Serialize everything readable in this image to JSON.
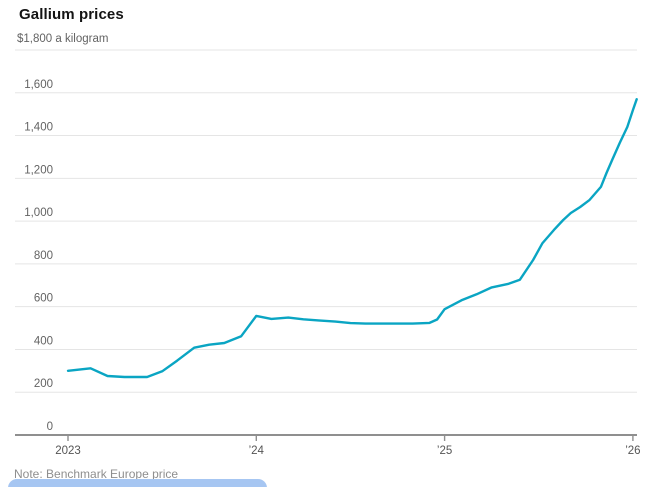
{
  "title": "Gallium prices",
  "unit_label": "$1,800 a kilogram",
  "note": "Note: Benchmark Europe price",
  "colors": {
    "line": "#0aa5c3",
    "grid": "#e5e5e5",
    "axis": "#8f8f8f",
    "y_label": "#636363",
    "x_label": "#555555",
    "title": "#141414",
    "note": "#8e8e8e",
    "bottom_bar": "#a6c6f2"
  },
  "chart_data": {
    "type": "line",
    "title": "Gallium prices",
    "ylabel": "$ a kilogram",
    "y_top_label": "$1,800 a kilogram",
    "ylim": [
      0,
      1800
    ],
    "y_tick_step": 200,
    "y_labeled_ticks": [
      0,
      200,
      400,
      600,
      800,
      1000,
      1200,
      1400,
      1600
    ],
    "xlim": [
      2023,
      2026.03
    ],
    "x_ticks": [
      {
        "t": 2023,
        "label": "2023"
      },
      {
        "t": 2024,
        "label": "’24"
      },
      {
        "t": 2025,
        "label": "’25"
      },
      {
        "t": 2026,
        "label": "’26"
      }
    ],
    "grid": true,
    "legend_position": "none",
    "series": [
      {
        "name": "Benchmark Europe price",
        "points": [
          [
            2023.0,
            300
          ],
          [
            2023.12,
            312
          ],
          [
            2023.21,
            276
          ],
          [
            2023.3,
            271
          ],
          [
            2023.42,
            271
          ],
          [
            2023.5,
            298
          ],
          [
            2023.58,
            348
          ],
          [
            2023.67,
            408
          ],
          [
            2023.75,
            422
          ],
          [
            2023.83,
            430
          ],
          [
            2023.92,
            462
          ],
          [
            2024.0,
            557
          ],
          [
            2024.08,
            543
          ],
          [
            2024.17,
            549
          ],
          [
            2024.25,
            541
          ],
          [
            2024.33,
            536
          ],
          [
            2024.42,
            530
          ],
          [
            2024.5,
            523
          ],
          [
            2024.58,
            521
          ],
          [
            2024.67,
            521
          ],
          [
            2024.75,
            521
          ],
          [
            2024.83,
            521
          ],
          [
            2024.92,
            524
          ],
          [
            2024.96,
            540
          ],
          [
            2025.0,
            588
          ],
          [
            2025.09,
            630
          ],
          [
            2025.17,
            658
          ],
          [
            2025.25,
            690
          ],
          [
            2025.34,
            707
          ],
          [
            2025.4,
            726
          ],
          [
            2025.47,
            818
          ],
          [
            2025.52,
            897
          ],
          [
            2025.58,
            958
          ],
          [
            2025.63,
            1005
          ],
          [
            2025.67,
            1038
          ],
          [
            2025.72,
            1066
          ],
          [
            2025.77,
            1099
          ],
          [
            2025.83,
            1160
          ],
          [
            2025.86,
            1225
          ],
          [
            2025.89,
            1286
          ],
          [
            2025.93,
            1365
          ],
          [
            2025.97,
            1440
          ],
          [
            2026.0,
            1519
          ],
          [
            2026.02,
            1570
          ]
        ]
      }
    ]
  }
}
